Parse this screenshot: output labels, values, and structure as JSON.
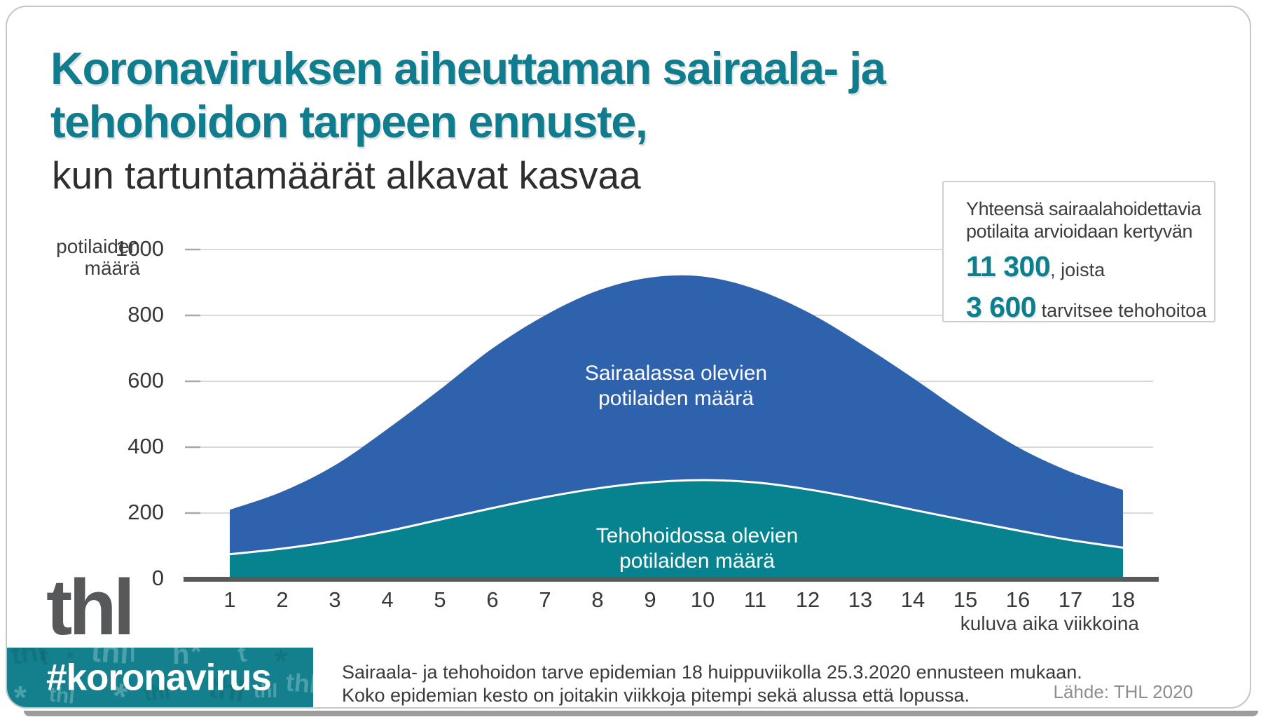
{
  "header": {
    "title_line1": "Koronaviruksen aiheuttaman sairaala- ja",
    "title_line2": "tehohoidon tarpeen ennuste,",
    "subtitle": "kun tartuntamäärät alkavat kasvaa"
  },
  "infobox": {
    "head_line1": "Yhteensä sairaalahoidettavia",
    "head_line2": "potilaita arvioidaan kertyvän",
    "stat1_value": "11 300",
    "stat1_suffix": ", joista",
    "stat2_value": "3 600",
    "stat2_suffix": " tarvitsee tehohoitoa"
  },
  "chart_data": {
    "type": "area",
    "x": [
      1,
      2,
      3,
      4,
      5,
      6,
      7,
      8,
      9,
      10,
      11,
      12,
      13,
      14,
      15,
      16,
      17,
      18
    ],
    "series": [
      {
        "name": "Sairaalassa olevien potilaiden määrä",
        "label_line1": "Sairaalassa olevien",
        "label_line2": "potilaiden määrä",
        "color": "#2f62ac",
        "values": [
          210,
          265,
          345,
          455,
          575,
          700,
          800,
          875,
          915,
          918,
          880,
          810,
          715,
          610,
          500,
          400,
          325,
          270
        ]
      },
      {
        "name": "Tehohoidossa olevien potilaiden määrä",
        "label_line1": "Tehohoidossa olevien",
        "label_line2": "potilaiden määrä",
        "color": "#078390",
        "values": [
          75,
          92,
          115,
          145,
          180,
          215,
          248,
          275,
          293,
          300,
          293,
          272,
          243,
          210,
          178,
          147,
          118,
          95
        ]
      }
    ],
    "ylabel_line1": "potilaiden",
    "ylabel_line2": "määrä",
    "xlabel": "kuluva aika viikkoina",
    "yticks": [
      0,
      200,
      400,
      600,
      800,
      1000
    ],
    "ylim": [
      0,
      1000
    ],
    "grid": true,
    "gridline_color": "#d9d9d9",
    "axis_color": "#58595b",
    "legend_position": "inside-areas"
  },
  "logo": {
    "text": "thl"
  },
  "banner": {
    "hashtag": "#koronavirus",
    "color": "#15808d"
  },
  "footer": {
    "note_line1": "Sairaala- ja tehohoidon tarve epidemian 18 huippuviikolla 25.3.2020 ennusteen mukaan.",
    "note_line2": "Koko epidemian kesto on joitakin viikkoja pitempi sekä alussa että lopussa.",
    "source": "Lähde: THL 2020"
  }
}
